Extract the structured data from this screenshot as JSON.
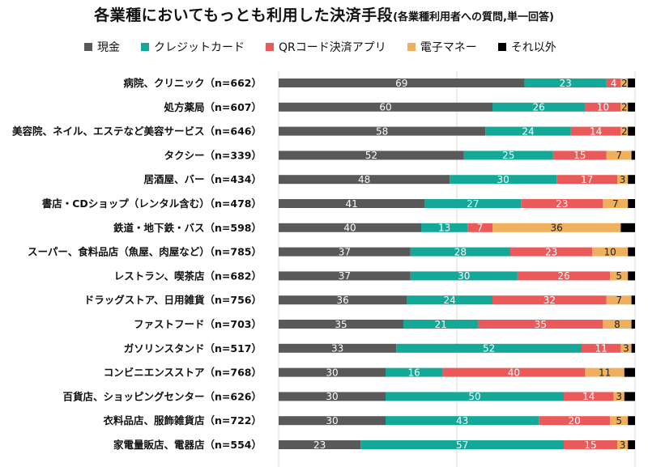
{
  "chart_data": {
    "type": "bar",
    "orientation": "horizontal-stacked",
    "title": "各業種においてもっとも利用した決済手段",
    "subtitle": "(各業種利用者への質問,単一回答)",
    "xlim": [
      0,
      100
    ],
    "categories": [
      "病院、クリニック（n=662）",
      "処方薬局（n=607）",
      "美容院、ネイル、エステなど美容サービス（n=646）",
      "タクシー（n=339）",
      "居酒屋、バー（n=434）",
      "書店・CDショップ（レンタル含む）（n=478）",
      "鉄道・地下鉄・バス（n=598）",
      "スーパー、食料品店（魚屋、肉屋など）（n=785）",
      "レストラン、喫茶店（n=682）",
      "ドラッグストア、日用雑貨（n=756）",
      "ファストフード（n=703）",
      "ガソリンスタンド（n=517）",
      "コンビニエンスストア（n=768）",
      "百貨店、ショッピングセンター（n=626）",
      "衣料品店、服飾雑貨店（n=722）",
      "家電量販店、電器店（n=554）"
    ],
    "series": [
      {
        "name": "現金",
        "color": "#595959",
        "label_color": "#ffffff",
        "values": [
          69,
          60,
          58,
          52,
          48,
          41,
          40,
          37,
          37,
          36,
          35,
          33,
          30,
          30,
          30,
          23
        ]
      },
      {
        "name": "クレジットカード",
        "color": "#14a898",
        "label_color": "#ffffff",
        "values": [
          23,
          26,
          24,
          25,
          30,
          27,
          13,
          28,
          30,
          24,
          21,
          52,
          16,
          50,
          43,
          57
        ]
      },
      {
        "name": "QRコード決済アプリ",
        "color": "#eb5a5a",
        "label_color": "#ffffff",
        "values": [
          4,
          10,
          14,
          15,
          17,
          23,
          7,
          23,
          26,
          32,
          35,
          11,
          40,
          14,
          20,
          15
        ]
      },
      {
        "name": "電子マネー",
        "color": "#eeb05c",
        "label_color": "#222222",
        "values": [
          2,
          2,
          2,
          7,
          3,
          7,
          36,
          10,
          5,
          7,
          8,
          3,
          11,
          3,
          5,
          3
        ]
      },
      {
        "name": "それ以外",
        "color": "#000000",
        "label_color": "#ffffff",
        "values": [
          2,
          2,
          2,
          1,
          2,
          2,
          4,
          2,
          2,
          1,
          1,
          1,
          3,
          3,
          2,
          2
        ]
      }
    ],
    "labeled_series": [
      "現金",
      "クレジットカード",
      "QRコード決済アプリ",
      "電子マネー"
    ],
    "grid": "vertical-major",
    "legend": "top"
  }
}
